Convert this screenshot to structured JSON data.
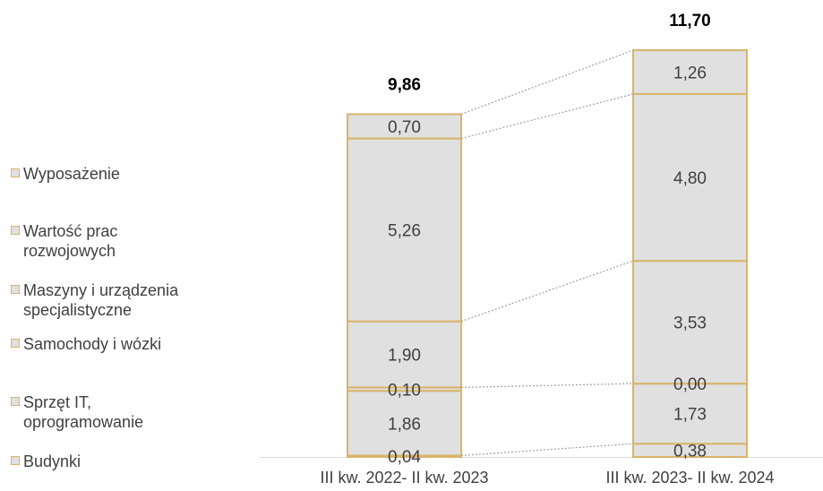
{
  "colors": {
    "segment_fill": "#e0e0e0",
    "segment_stroke": "#d9b46a",
    "text": "#404040",
    "connector": "#a0a0a0"
  },
  "chart_data": {
    "type": "bar",
    "stacked": true,
    "categories": [
      "III kw. 2022- II kw. 2023",
      "III kw. 2023- II kw. 2024"
    ],
    "totals": [
      "9,86",
      "11,70"
    ],
    "series": [
      {
        "name": "Budynki",
        "values": [
          0.04,
          0.38
        ],
        "labels": [
          "0,04",
          "0,38"
        ]
      },
      {
        "name": "Sprzęt IT, oprogramowanie",
        "values": [
          1.86,
          1.73
        ],
        "labels": [
          "1,86",
          "1,73"
        ]
      },
      {
        "name": "Samochody i wózki",
        "values": [
          0.1,
          0.0
        ],
        "labels": [
          "0,10",
          "0,00"
        ]
      },
      {
        "name": "Maszyny i urządzenia specjalistyczne",
        "values": [
          1.9,
          3.53
        ],
        "labels": [
          "1,90",
          "3,53"
        ]
      },
      {
        "name": "Wartość prac rozwojowych",
        "values": [
          5.26,
          4.8
        ],
        "labels": [
          "5,26",
          "4,80"
        ]
      },
      {
        "name": "Wyposażenie",
        "values": [
          0.7,
          1.26
        ],
        "labels": [
          "0,70",
          "1,26"
        ]
      }
    ],
    "legend_position": "left",
    "grid": false
  },
  "legend": {
    "items": [
      {
        "label": "Wyposażenie"
      },
      {
        "label": "Wartość prac rozwojowych"
      },
      {
        "label": "Maszyny i urządzenia specjalistyczne"
      },
      {
        "label": "Samochody i wózki"
      },
      {
        "label": "Sprzęt IT, oprogramowanie"
      },
      {
        "label": "Budynki"
      }
    ]
  }
}
